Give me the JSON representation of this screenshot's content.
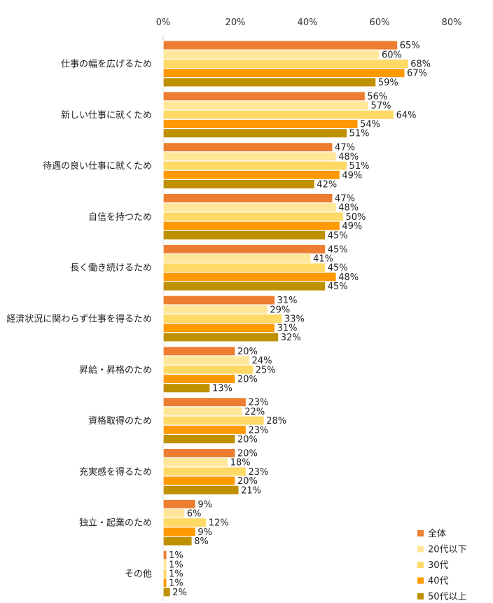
{
  "chart_data": {
    "type": "bar",
    "orientation": "horizontal",
    "xlim": [
      0,
      80
    ],
    "xticks": [
      "0%",
      "20%",
      "40%",
      "60%",
      "80%"
    ],
    "categories": [
      "仕事の幅を広げるため",
      "新しい仕事に就くため",
      "待遇の良い仕事に就くため",
      "自信を持つため",
      "長く働き続けるため",
      "経済状況に関わらず仕事を得るため",
      "昇給・昇格のため",
      "資格取得のため",
      "充実感を得るため",
      "独立・起業のため",
      "その他"
    ],
    "series": [
      {
        "name": "全体",
        "color": "#ED7D31",
        "values": [
          65,
          56,
          47,
          47,
          45,
          31,
          20,
          23,
          20,
          9,
          1
        ]
      },
      {
        "name": "20代以下",
        "color": "#FFE699",
        "values": [
          60,
          57,
          48,
          48,
          41,
          29,
          24,
          22,
          18,
          6,
          1
        ]
      },
      {
        "name": "30代",
        "color": "#FFD966",
        "values": [
          68,
          64,
          51,
          50,
          45,
          33,
          25,
          28,
          23,
          12,
          1
        ]
      },
      {
        "name": "40代",
        "color": "#FF9900",
        "values": [
          67,
          54,
          49,
          49,
          48,
          31,
          20,
          23,
          20,
          9,
          1
        ]
      },
      {
        "name": "50代以上",
        "color": "#BF9000",
        "values": [
          59,
          51,
          42,
          45,
          45,
          32,
          13,
          20,
          21,
          8,
          2
        ]
      }
    ],
    "value_suffix": "%",
    "grid": false,
    "legend_position": "bottom-right"
  }
}
